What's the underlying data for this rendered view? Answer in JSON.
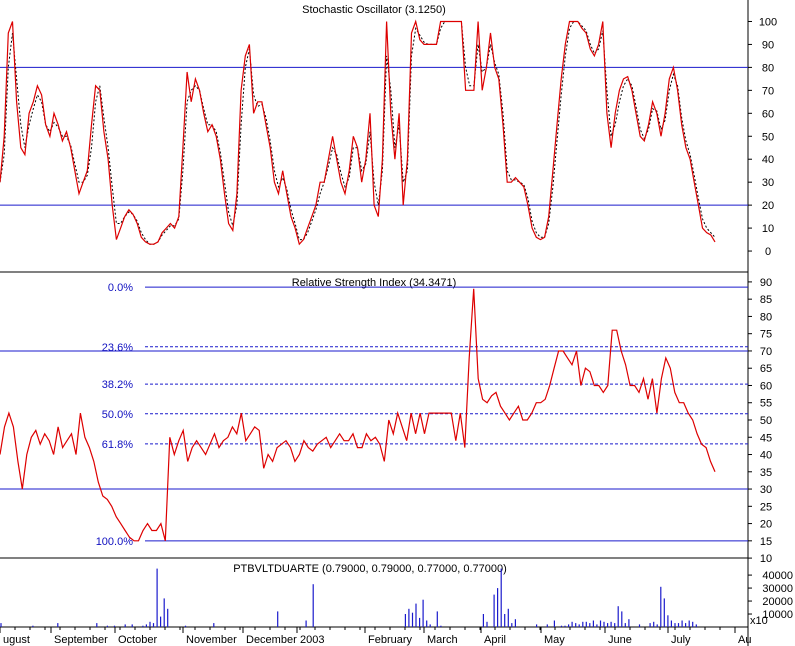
{
  "chart_data": [
    {
      "type": "line",
      "title": "Stochastic Oscillator (3.1250)",
      "ylim": [
        -10,
        105
      ],
      "yticks": [
        0,
        10,
        20,
        30,
        40,
        50,
        60,
        70,
        80,
        90,
        100
      ],
      "reference_lines": [
        20,
        80
      ],
      "series": [
        {
          "style": "solid",
          "color": "#dd0000",
          "values": [
            30,
            50,
            95,
            100,
            65,
            45,
            42,
            60,
            65,
            72,
            68,
            55,
            50,
            60,
            55,
            48,
            52,
            45,
            35,
            25,
            30,
            35,
            55,
            72,
            70,
            52,
            40,
            20,
            5,
            10,
            15,
            18,
            16,
            12,
            6,
            4,
            3,
            3,
            4,
            8,
            10,
            12,
            10,
            15,
            45,
            78,
            65,
            75,
            70,
            60,
            52,
            55,
            50,
            40,
            25,
            12,
            9,
            25,
            70,
            85,
            90,
            60,
            65,
            65,
            55,
            45,
            30,
            25,
            35,
            25,
            15,
            10,
            3,
            5,
            10,
            15,
            20,
            30,
            30,
            40,
            50,
            40,
            30,
            25,
            35,
            50,
            45,
            30,
            40,
            60,
            20,
            15,
            40,
            100,
            60,
            40,
            60,
            20,
            40,
            95,
            100,
            92,
            90,
            90,
            90,
            90,
            100,
            100,
            100,
            100,
            100,
            100,
            70,
            70,
            70,
            100,
            70,
            80,
            95,
            80,
            75,
            55,
            30,
            30,
            32,
            30,
            28,
            20,
            10,
            6,
            5,
            6,
            15,
            35,
            55,
            75,
            90,
            100,
            100,
            100,
            97,
            95,
            88,
            85,
            90,
            100,
            60,
            45,
            60,
            70,
            75,
            76,
            70,
            60,
            50,
            48,
            55,
            65,
            60,
            50,
            60,
            75,
            80,
            70,
            55,
            45,
            40,
            30,
            20,
            10,
            8,
            7,
            4
          ]
        },
        {
          "style": "dashed",
          "color": "#000000",
          "values": [
            30,
            42,
            80,
            95,
            75,
            55,
            45,
            55,
            62,
            68,
            65,
            55,
            52,
            56,
            54,
            50,
            50,
            46,
            38,
            30,
            30,
            33,
            45,
            65,
            72,
            58,
            45,
            28,
            12,
            12,
            15,
            17,
            16,
            13,
            8,
            5,
            3,
            3,
            4,
            7,
            9,
            11,
            11,
            14,
            35,
            65,
            70,
            72,
            70,
            62,
            55,
            55,
            52,
            43,
            30,
            17,
            11,
            20,
            55,
            80,
            88,
            68,
            63,
            64,
            58,
            48,
            35,
            28,
            32,
            27,
            18,
            12,
            5,
            5,
            8,
            13,
            18,
            25,
            30,
            37,
            45,
            42,
            34,
            28,
            32,
            45,
            45,
            35,
            38,
            52,
            30,
            20,
            35,
            85,
            70,
            45,
            55,
            30,
            35,
            85,
            97,
            94,
            91,
            90,
            90,
            90,
            97,
            100,
            100,
            100,
            100,
            100,
            80,
            72,
            72,
            90,
            78,
            80,
            90,
            82,
            77,
            60,
            35,
            31,
            31,
            30,
            29,
            23,
            13,
            8,
            6,
            6,
            12,
            28,
            48,
            68,
            85,
            97,
            100,
            100,
            98,
            96,
            90,
            86,
            88,
            96,
            70,
            50,
            55,
            65,
            72,
            75,
            72,
            63,
            53,
            49,
            53,
            62,
            61,
            53,
            57,
            70,
            77,
            72,
            58,
            48,
            42,
            33,
            23,
            14,
            10,
            8,
            6
          ]
        }
      ]
    },
    {
      "type": "line",
      "title": "Relative Strength Index (34.3471)",
      "ylim": [
        8,
        92
      ],
      "yticks": [
        10,
        15,
        20,
        25,
        30,
        35,
        40,
        45,
        50,
        55,
        60,
        65,
        70,
        75,
        80,
        85,
        90
      ],
      "reference_lines": [
        30,
        70
      ],
      "fibonacci": {
        "high": 88.5,
        "low": 15,
        "levels": [
          {
            "label": "0.0%",
            "value": 88.5,
            "style": "solid"
          },
          {
            "label": "23.6%",
            "value": 71.2,
            "style": "dashed"
          },
          {
            "label": "38.2%",
            "value": 60.4,
            "style": "dashed"
          },
          {
            "label": "50.0%",
            "value": 51.8,
            "style": "dashed"
          },
          {
            "label": "61.8%",
            "value": 43.1,
            "style": "dashed"
          },
          {
            "label": "100.0%",
            "value": 15,
            "style": "solid"
          }
        ]
      },
      "series": [
        {
          "style": "solid",
          "color": "#dd0000",
          "values": [
            40,
            48,
            52,
            48,
            38,
            30,
            40,
            45,
            47,
            43,
            46,
            44,
            40,
            48,
            42,
            44,
            46,
            40,
            52,
            45,
            42,
            38,
            32,
            28,
            27,
            25,
            22,
            20,
            18,
            16,
            15,
            15,
            18,
            20,
            18,
            18,
            20,
            15,
            45,
            40,
            44,
            47,
            38,
            42,
            44,
            42,
            40,
            43,
            46,
            42,
            44,
            45,
            48,
            46,
            52,
            44,
            46,
            48,
            47,
            36,
            40,
            38,
            42,
            43,
            44,
            42,
            38,
            40,
            44,
            42,
            41,
            43,
            44,
            45,
            42,
            44,
            46,
            44,
            44,
            46,
            42,
            42,
            46,
            44,
            45,
            43,
            38,
            50,
            46,
            52,
            48,
            44,
            52,
            46,
            52,
            46,
            52,
            52,
            52,
            52,
            52,
            52,
            44,
            52,
            42,
            68,
            88,
            62,
            56,
            55,
            57,
            58,
            54,
            52,
            50,
            52,
            54,
            50,
            50,
            52,
            55,
            55,
            56,
            60,
            65,
            70,
            70,
            68,
            66,
            70,
            60,
            65,
            64,
            60,
            60,
            58,
            60,
            76,
            76,
            70,
            66,
            60,
            60,
            58,
            62,
            56,
            62,
            52,
            62,
            68,
            65,
            58,
            55,
            55,
            52,
            50,
            46,
            43,
            42,
            38,
            35
          ]
        }
      ]
    },
    {
      "type": "bar",
      "title": "PTBVLTDUARTE (0.79000, 0.79000, 0.77000, 0.77000)",
      "ylim": [
        0,
        47000
      ],
      "yticks": [
        10000,
        20000,
        30000,
        40000
      ],
      "ytick_labels": [
        "10000",
        "20000",
        "30000",
        "40000"
      ],
      "multiplier_label": "x10",
      "x_labels": [
        "ugust",
        "September",
        "October",
        "November",
        "December",
        "2003",
        "February",
        "March",
        "April",
        "May",
        "June",
        "July",
        "Au"
      ],
      "values": [
        3000,
        0,
        0,
        0,
        0,
        0,
        0,
        0,
        0,
        1000,
        0,
        0,
        0,
        0,
        0,
        0,
        3000,
        0,
        0,
        0,
        0,
        0,
        0,
        0,
        0,
        0,
        0,
        3000,
        0,
        0,
        1000,
        0,
        1000,
        0,
        0,
        2000,
        0,
        2000,
        0,
        0,
        1000,
        2000,
        4000,
        3000,
        45000,
        8000,
        22000,
        14000,
        0,
        0,
        0,
        0,
        1000,
        0,
        0,
        0,
        0,
        0,
        0,
        0,
        3000,
        0,
        0,
        0,
        0,
        0,
        0,
        0,
        0,
        0,
        0,
        0,
        0,
        0,
        0,
        0,
        0,
        0,
        12000,
        0,
        0,
        0,
        0,
        0,
        0,
        0,
        5000,
        0,
        33000,
        0,
        0,
        0,
        0,
        0,
        0,
        0,
        0,
        0,
        0,
        0,
        0,
        0,
        0,
        0,
        0,
        0,
        0,
        0,
        0,
        0,
        0,
        0,
        0,
        0,
        10000,
        14000,
        11000,
        18000,
        7000,
        21000,
        5000,
        2000,
        0,
        12000,
        1000,
        0,
        0,
        0,
        0,
        0,
        0,
        0,
        0,
        0,
        0,
        0,
        10000,
        4000,
        0,
        25000,
        30000,
        45000,
        10000,
        14000,
        3000,
        6000,
        0,
        0,
        0,
        0,
        0,
        2000,
        0,
        0,
        2000,
        0,
        5000,
        0,
        1000,
        1000,
        2000,
        4000,
        3000,
        2000,
        4000,
        4000,
        3000,
        5000,
        2000,
        5000,
        4000,
        3000,
        4000,
        3000,
        16000,
        12000,
        3000,
        6000,
        0,
        0,
        2000,
        0,
        0,
        3000,
        4000,
        2000,
        31000,
        22000,
        9000,
        5000,
        3000,
        3000,
        5000,
        3000,
        5000,
        4000,
        2000,
        0,
        0,
        0,
        0,
        0
      ]
    }
  ]
}
